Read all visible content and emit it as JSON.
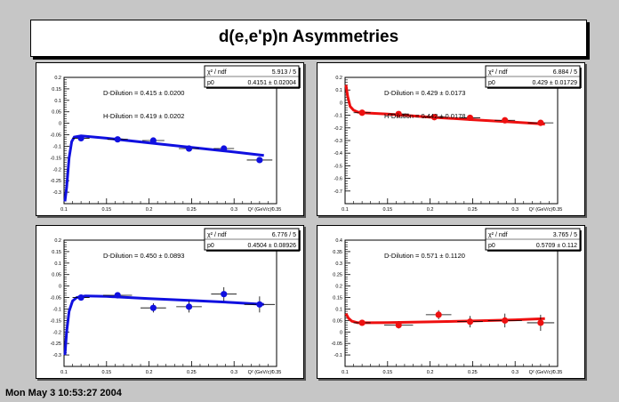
{
  "title": "d(e,e'p)n Asymmetries",
  "timestamp": "Mon May  3 10:53:27 2004",
  "stats_chi_label": "χ² / ndf",
  "stats_p0_label": "p0",
  "xaxis_label": "Q² (GeV/c)²",
  "chart_data": [
    {
      "type": "scatter",
      "color": "#1010e0",
      "xlim": [
        0.1,
        0.35
      ],
      "ylim": [
        -0.35,
        0.2
      ],
      "xticks": [
        "0.1",
        "0.15",
        "0.2",
        "0.25",
        "0.3",
        "0.35"
      ],
      "yticks": [
        "-0.3",
        "-0.25",
        "-0.2",
        "-0.15",
        "-0.1",
        "-0.05",
        "0",
        "0.05",
        "0.1",
        "0.15",
        "0.2"
      ],
      "ytick_values": [
        -0.3,
        -0.25,
        -0.2,
        -0.15,
        -0.1,
        -0.05,
        0,
        0.05,
        0.1,
        0.15,
        0.2
      ],
      "xtick_values": [
        0.1,
        0.15,
        0.2,
        0.25,
        0.3,
        0.35
      ],
      "stats_chi_value": "5.913 / 5",
      "stats_p0_value": "0.4151 ± 0.02004",
      "annotations": [
        "D-Dilution = 0.415 ± 0.0200",
        "H-Dilution = 0.419 ± 0.0202"
      ],
      "points": [
        {
          "x": 0.12,
          "y": -0.065,
          "ex": 0.01,
          "ey": 0.005
        },
        {
          "x": 0.163,
          "y": -0.07,
          "ex": 0.012,
          "ey": 0.005
        },
        {
          "x": 0.205,
          "y": -0.075,
          "ex": 0.013,
          "ey": 0.005
        },
        {
          "x": 0.247,
          "y": -0.11,
          "ex": 0.012,
          "ey": 0.006
        },
        {
          "x": 0.288,
          "y": -0.11,
          "ex": 0.012,
          "ey": 0.007
        },
        {
          "x": 0.33,
          "y": -0.16,
          "ex": 0.015,
          "ey": 0.01
        }
      ],
      "curve": [
        [
          0.101,
          -0.34
        ],
        [
          0.103,
          -0.28
        ],
        [
          0.106,
          -0.15
        ],
        [
          0.109,
          -0.08
        ],
        [
          0.112,
          -0.06
        ],
        [
          0.12,
          -0.055
        ],
        [
          0.15,
          -0.065
        ],
        [
          0.2,
          -0.085
        ],
        [
          0.25,
          -0.105
        ],
        [
          0.3,
          -0.125
        ],
        [
          0.335,
          -0.14
        ]
      ]
    },
    {
      "type": "scatter",
      "color": "#ee1010",
      "xlim": [
        0.1,
        0.35
      ],
      "ylim": [
        -0.8,
        0.2
      ],
      "xticks": [
        "0.1",
        "0.15",
        "0.2",
        "0.25",
        "0.3",
        "0.35"
      ],
      "yticks": [
        "-0.7",
        "-0.6",
        "-0.5",
        "-0.4",
        "-0.3",
        "-0.2",
        "-0.1",
        "0",
        "0.1",
        "0.2"
      ],
      "ytick_values": [
        -0.7,
        -0.6,
        -0.5,
        -0.4,
        -0.3,
        -0.2,
        -0.1,
        0,
        0.1,
        0.2
      ],
      "xtick_values": [
        0.1,
        0.15,
        0.2,
        0.25,
        0.3,
        0.35
      ],
      "stats_chi_value": "6.884 / 5",
      "stats_p0_value": "0.429 ± 0.01729",
      "annotations": [
        "D-Dilution = 0.429 ± 0.0173",
        "H-Dilution = 0.442 ± 0.0178"
      ],
      "points": [
        {
          "x": 0.12,
          "y": -0.08,
          "ex": 0.01,
          "ey": 0.01
        },
        {
          "x": 0.163,
          "y": -0.09,
          "ex": 0.012,
          "ey": 0.01
        },
        {
          "x": 0.205,
          "y": -0.115,
          "ex": 0.013,
          "ey": 0.01
        },
        {
          "x": 0.247,
          "y": -0.12,
          "ex": 0.012,
          "ey": 0.01
        },
        {
          "x": 0.288,
          "y": -0.14,
          "ex": 0.012,
          "ey": 0.012
        },
        {
          "x": 0.33,
          "y": -0.16,
          "ex": 0.015,
          "ey": 0.015
        }
      ],
      "curve": [
        [
          0.101,
          0.14
        ],
        [
          0.103,
          0.05
        ],
        [
          0.106,
          -0.03
        ],
        [
          0.11,
          -0.06
        ],
        [
          0.115,
          -0.075
        ],
        [
          0.12,
          -0.08
        ],
        [
          0.15,
          -0.09
        ],
        [
          0.2,
          -0.115
        ],
        [
          0.25,
          -0.135
        ],
        [
          0.3,
          -0.155
        ],
        [
          0.335,
          -0.17
        ]
      ]
    },
    {
      "type": "scatter",
      "color": "#1010e0",
      "xlim": [
        0.1,
        0.35
      ],
      "ylim": [
        -0.35,
        0.2
      ],
      "xticks": [
        "0.1",
        "0.15",
        "0.2",
        "0.25",
        "0.3",
        "0.35"
      ],
      "yticks": [
        "-0.3",
        "-0.25",
        "-0.2",
        "-0.15",
        "-0.1",
        "-0.05",
        "0",
        "0.05",
        "0.1",
        "0.15",
        "0.2"
      ],
      "ytick_values": [
        -0.3,
        -0.25,
        -0.2,
        -0.15,
        -0.1,
        -0.05,
        0,
        0.05,
        0.1,
        0.15,
        0.2
      ],
      "xtick_values": [
        0.1,
        0.15,
        0.2,
        0.25,
        0.3,
        0.35
      ],
      "stats_chi_value": "6.776 / 5",
      "stats_p0_value": "0.4504 ± 0.08926",
      "annotations": [
        "D-Dilution = 0.450 ± 0.0893"
      ],
      "points": [
        {
          "x": 0.12,
          "y": -0.05,
          "ex": 0.01,
          "ey": 0.01
        },
        {
          "x": 0.163,
          "y": -0.04,
          "ex": 0.017,
          "ey": 0.012
        },
        {
          "x": 0.205,
          "y": -0.095,
          "ex": 0.015,
          "ey": 0.02
        },
        {
          "x": 0.247,
          "y": -0.09,
          "ex": 0.015,
          "ey": 0.025
        },
        {
          "x": 0.288,
          "y": -0.035,
          "ex": 0.015,
          "ey": 0.03
        },
        {
          "x": 0.33,
          "y": -0.08,
          "ex": 0.018,
          "ey": 0.035
        }
      ],
      "curve": [
        [
          0.101,
          -0.3
        ],
        [
          0.103,
          -0.2
        ],
        [
          0.106,
          -0.11
        ],
        [
          0.11,
          -0.065
        ],
        [
          0.115,
          -0.05
        ],
        [
          0.125,
          -0.043
        ],
        [
          0.15,
          -0.045
        ],
        [
          0.2,
          -0.055
        ],
        [
          0.25,
          -0.063
        ],
        [
          0.3,
          -0.072
        ],
        [
          0.335,
          -0.08
        ]
      ]
    },
    {
      "type": "scatter",
      "color": "#ee1010",
      "xlim": [
        0.1,
        0.35
      ],
      "ylim": [
        -0.15,
        0.4
      ],
      "xticks": [
        "0.1",
        "0.15",
        "0.2",
        "0.25",
        "0.3",
        "0.35"
      ],
      "yticks": [
        "-0.1",
        "-0.05",
        "0",
        "0.05",
        "0.1",
        "0.15",
        "0.2",
        "0.25",
        "0.3",
        "0.35",
        "0.4"
      ],
      "ytick_values": [
        -0.1,
        -0.05,
        0,
        0.05,
        0.1,
        0.15,
        0.2,
        0.25,
        0.3,
        0.35,
        0.4
      ],
      "xtick_values": [
        0.1,
        0.15,
        0.2,
        0.25,
        0.3,
        0.35
      ],
      "stats_chi_value": "3.765 / 5",
      "stats_p0_value": "0.5709 ± 0.112",
      "annotations": [
        "D-Dilution = 0.571 ± 0.1120"
      ],
      "points": [
        {
          "x": 0.12,
          "y": 0.04,
          "ex": 0.01,
          "ey": 0.01
        },
        {
          "x": 0.163,
          "y": 0.03,
          "ex": 0.017,
          "ey": 0.015
        },
        {
          "x": 0.21,
          "y": 0.075,
          "ex": 0.015,
          "ey": 0.02
        },
        {
          "x": 0.247,
          "y": 0.045,
          "ex": 0.015,
          "ey": 0.025
        },
        {
          "x": 0.288,
          "y": 0.05,
          "ex": 0.02,
          "ey": 0.03
        },
        {
          "x": 0.33,
          "y": 0.04,
          "ex": 0.016,
          "ey": 0.035
        }
      ],
      "curve": [
        [
          0.101,
          0.08
        ],
        [
          0.104,
          0.06
        ],
        [
          0.108,
          0.047
        ],
        [
          0.115,
          0.04
        ],
        [
          0.13,
          0.04
        ],
        [
          0.15,
          0.041
        ],
        [
          0.2,
          0.044
        ],
        [
          0.25,
          0.048
        ],
        [
          0.3,
          0.053
        ],
        [
          0.335,
          0.058
        ]
      ]
    }
  ]
}
